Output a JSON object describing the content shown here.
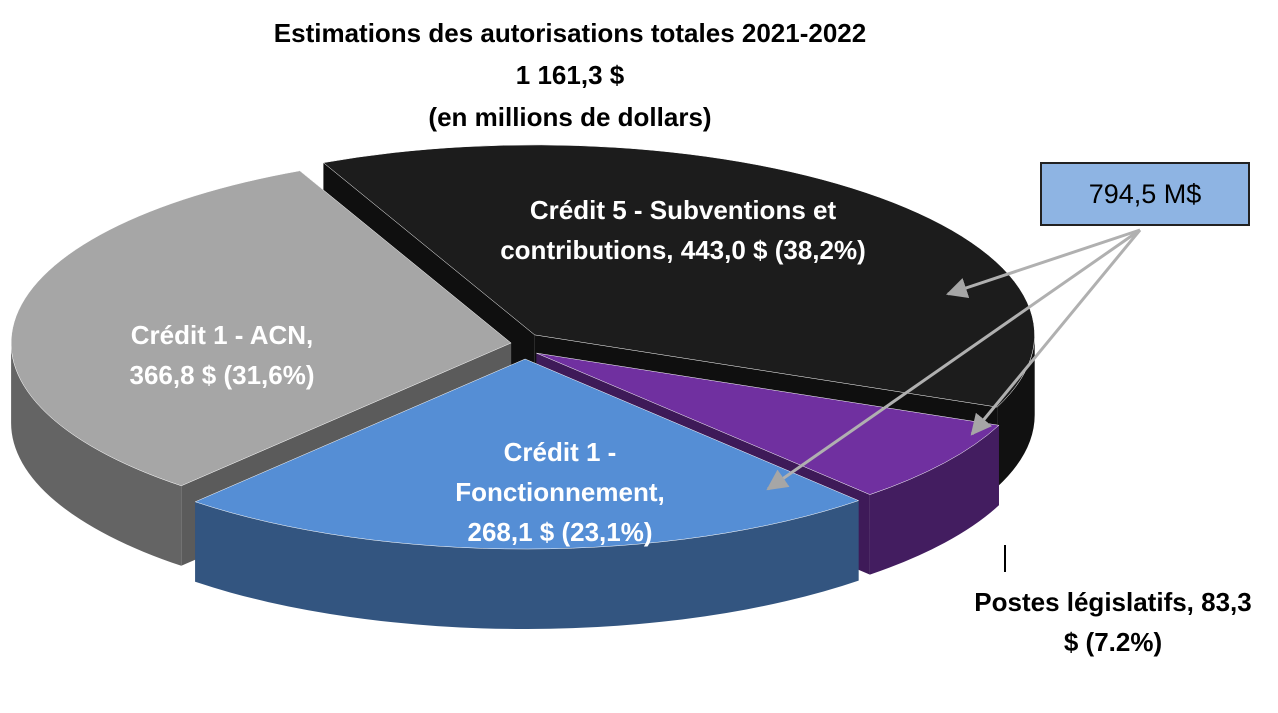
{
  "chart_data": {
    "type": "pie3d",
    "title": "Estimations des autorisations totales 2021-2022",
    "subtitle": [
      "1 161,3 $",
      "(en millions de dollars)"
    ],
    "values": [
      443.0,
      83.3,
      268.1,
      366.8
    ],
    "value_labels": [
      "Crédit 5 - Subventions et contributions, 443,0 $ (38,2%)",
      "Postes législatifs, 83,3 $ (7.2%)",
      "Crédit 1 - Fonctionnement, 268,1 $ (23,1%)",
      "Crédit 1 - ACN, 366,8 $ (31,6%)"
    ],
    "colors": [
      "#1c1c1c",
      "#7030a0",
      "#558ed5",
      "#a6a6a6"
    ],
    "annotation": "794,5 M$"
  }
}
